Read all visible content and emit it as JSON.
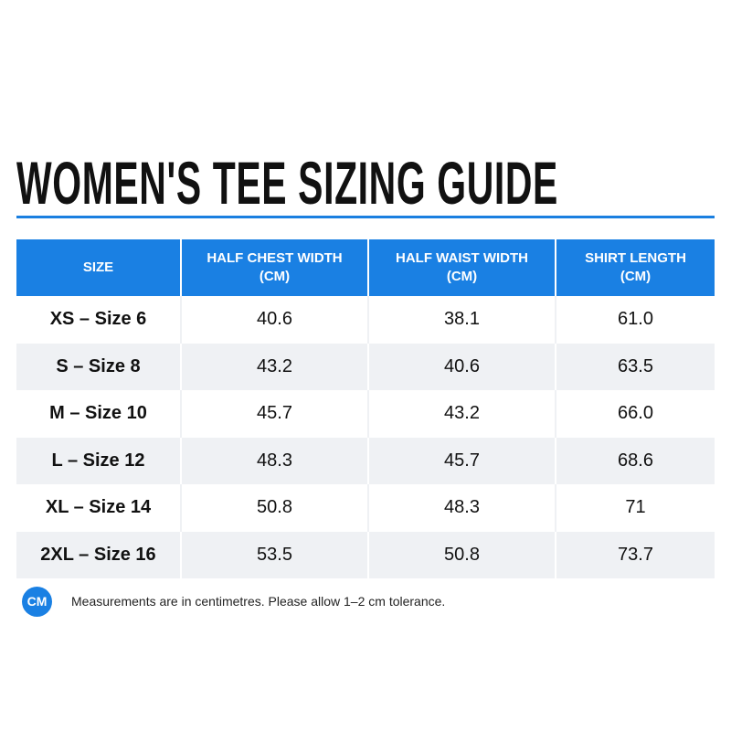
{
  "header": {
    "title": "WOMEN'S TEE SIZING GUIDE"
  },
  "table": {
    "columns": [
      "SIZE",
      "HALF CHEST WIDTH (CM)",
      "HALF WAIST WIDTH (CM)",
      "SHIRT LENGTH (CM)"
    ],
    "rows": [
      [
        "XS – Size 6",
        "40.6",
        "38.1",
        "61.0"
      ],
      [
        "S – Size 8",
        "43.2",
        "40.6",
        "63.5"
      ],
      [
        "M – Size 10",
        "45.7",
        "43.2",
        "66.0"
      ],
      [
        "L – Size 12",
        "48.3",
        "45.7",
        "68.6"
      ],
      [
        "XL – Size 14",
        "50.8",
        "48.3",
        "71"
      ],
      [
        "2XL – Size 16",
        "53.5",
        "50.8",
        "73.7"
      ]
    ]
  },
  "footer": {
    "badge": "CM",
    "note": "Measurements are in centimetres. Please allow 1–2 cm tolerance."
  }
}
